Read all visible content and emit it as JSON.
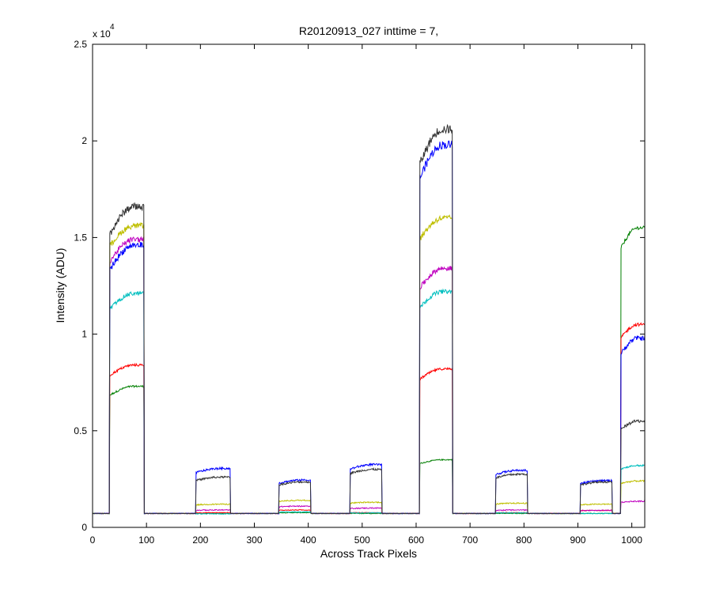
{
  "chart_data": {
    "type": "line",
    "title": "R20120913_027 inttime = 7,",
    "xlabel": "Across Track Pixels",
    "ylabel": "Intensity (ADU)",
    "xlim": [
      0,
      1024
    ],
    "ylim": [
      0,
      25000
    ],
    "y_exponent_label": "x 10",
    "y_exponent": "4",
    "xticks": [
      0,
      100,
      200,
      300,
      400,
      500,
      600,
      700,
      800,
      900,
      1000
    ],
    "xtick_labels": [
      "0",
      "100",
      "200",
      "300",
      "400",
      "500",
      "600",
      "700",
      "800",
      "900",
      "1000"
    ],
    "yticks": [
      0,
      5000,
      10000,
      15000,
      20000,
      25000
    ],
    "ytick_labels": [
      "0",
      "0.5",
      "1",
      "1.5",
      "2",
      "2.5"
    ],
    "grid": false,
    "baseline": 720,
    "peaks": [
      {
        "x_start": 32,
        "x_end": 95
      },
      {
        "x_start": 192,
        "x_end": 255
      },
      {
        "x_start": 346,
        "x_end": 404
      },
      {
        "x_start": 478,
        "x_end": 536
      },
      {
        "x_start": 607,
        "x_end": 667
      },
      {
        "x_start": 748,
        "x_end": 806
      },
      {
        "x_start": 905,
        "x_end": 963
      },
      {
        "x_start": 980,
        "x_end": 1024
      }
    ],
    "series": [
      {
        "color": "#333333",
        "levels": [
          16600,
          2600,
          2350,
          3000,
          20600,
          2750,
          2350,
          5500
        ],
        "start_factor": 0.91,
        "noise": 300
      },
      {
        "color": "#0000ff",
        "levels": [
          14600,
          3050,
          2450,
          3250,
          19800,
          2950,
          2420,
          9800
        ],
        "start_factor": 0.91,
        "noise": 300
      },
      {
        "color": "#bfbf00",
        "levels": [
          15600,
          1200,
          1400,
          1300,
          16000,
          1250,
          1200,
          2400
        ],
        "start_factor": 0.93,
        "noise": 250
      },
      {
        "color": "#bf00bf",
        "levels": [
          14900,
          900,
          1100,
          1000,
          13400,
          900,
          880,
          1350
        ],
        "start_factor": 0.92,
        "noise": 250
      },
      {
        "color": "#00bfbf",
        "levels": [
          12100,
          700,
          800,
          750,
          12200,
          750,
          720,
          3200
        ],
        "start_factor": 0.93,
        "noise": 220
      },
      {
        "color": "#ff0000",
        "levels": [
          8400,
          760,
          900,
          760,
          8200,
          760,
          880,
          10500
        ],
        "start_factor": 0.93,
        "noise": 180
      },
      {
        "color": "#007f00",
        "levels": [
          7300,
          720,
          760,
          720,
          3500,
          720,
          720,
          15500
        ],
        "start_factor": 0.93,
        "noise": 150
      }
    ]
  }
}
